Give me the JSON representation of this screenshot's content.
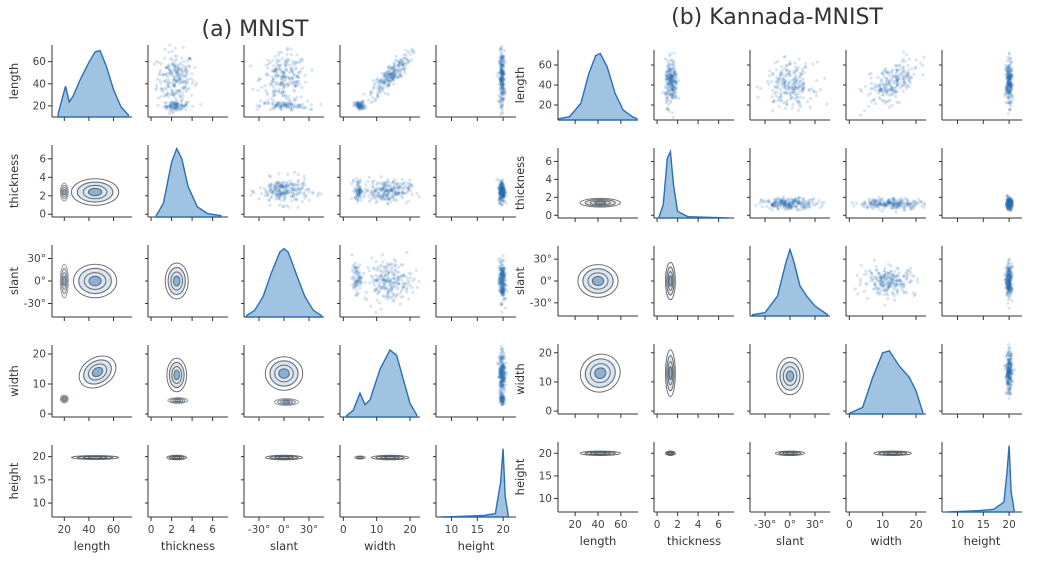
{
  "colors": {
    "accent": "#2c6fb0",
    "kde_fill": "#8fb8dc",
    "contour": "#555555",
    "axis": "#333333"
  },
  "chart_data": [
    {
      "type": "pairplot",
      "title": "(a)   MNIST",
      "variables": [
        "length",
        "thickness",
        "slant",
        "width",
        "height"
      ],
      "axes": {
        "length": {
          "range": [
            10,
            75
          ],
          "ticks": [
            20,
            40,
            60
          ],
          "tick_labels": [
            "20",
            "40",
            "60"
          ]
        },
        "thickness": {
          "range": [
            -0.3,
            7.5
          ],
          "ticks": [
            0,
            2,
            4,
            6
          ],
          "tick_labels": [
            "0",
            "2",
            "4",
            "6"
          ]
        },
        "slant": {
          "range": [
            -48,
            48
          ],
          "ticks": [
            -30,
            0,
            30
          ],
          "tick_labels": [
            "-30°",
            "0°",
            "30°"
          ]
        },
        "width": {
          "range": [
            -1,
            23
          ],
          "ticks": [
            0,
            10,
            20
          ],
          "tick_labels": [
            "0",
            "10",
            "20"
          ]
        },
        "height": {
          "range": [
            7,
            22.5
          ],
          "ticks": [
            10,
            15,
            20
          ],
          "tick_labels": [
            "10",
            "15",
            "20"
          ]
        }
      },
      "x_tick_labels_override": {
        "thickness": [
          "0",
          "2",
          "4",
          "6"
        ]
      },
      "diagonal_kde": {
        "length": [
          [
            15,
            0.05
          ],
          [
            18,
            0.25
          ],
          [
            21,
            0.45
          ],
          [
            24,
            0.22
          ],
          [
            27,
            0.3
          ],
          [
            33,
            0.55
          ],
          [
            40,
            0.8
          ],
          [
            45,
            0.95
          ],
          [
            49,
            0.97
          ],
          [
            54,
            0.75
          ],
          [
            60,
            0.4
          ],
          [
            66,
            0.15
          ],
          [
            72,
            0.03
          ]
        ],
        "thickness": [
          [
            0.5,
            0.02
          ],
          [
            1.2,
            0.2
          ],
          [
            2.0,
            0.8
          ],
          [
            2.5,
            1.0
          ],
          [
            3.0,
            0.85
          ],
          [
            3.6,
            0.45
          ],
          [
            4.5,
            0.15
          ],
          [
            5.5,
            0.05
          ],
          [
            6.8,
            0.02
          ]
        ],
        "slant": [
          [
            -45,
            0.02
          ],
          [
            -35,
            0.1
          ],
          [
            -25,
            0.3
          ],
          [
            -15,
            0.65
          ],
          [
            -5,
            0.95
          ],
          [
            0,
            1.0
          ],
          [
            5,
            0.95
          ],
          [
            15,
            0.62
          ],
          [
            25,
            0.3
          ],
          [
            35,
            0.1
          ],
          [
            45,
            0.02
          ]
        ],
        "width": [
          [
            1,
            0.02
          ],
          [
            3,
            0.1
          ],
          [
            5,
            0.35
          ],
          [
            6.5,
            0.18
          ],
          [
            8,
            0.25
          ],
          [
            11,
            0.7
          ],
          [
            14,
            0.98
          ],
          [
            16,
            0.9
          ],
          [
            18,
            0.55
          ],
          [
            20,
            0.2
          ],
          [
            22,
            0.03
          ]
        ],
        "height": [
          [
            8,
            0.0
          ],
          [
            12,
            0.01
          ],
          [
            16,
            0.02
          ],
          [
            18.5,
            0.05
          ],
          [
            19.5,
            0.5
          ],
          [
            20,
            1.0
          ],
          [
            20.4,
            0.3
          ],
          [
            21,
            0.02
          ]
        ]
      },
      "blobs": [
        {
          "x": "length",
          "y": 45,
          "yvar": "thickness",
          "yv": 2.4,
          "sx": 12,
          "sy": 0.9,
          "w": 1
        },
        {
          "x": "length",
          "xv": 20,
          "yvar": "thickness",
          "yv": 2.4,
          "sx": 2,
          "sy": 0.6,
          "w": 0.4
        },
        {
          "x": "length",
          "xv": 45,
          "yvar": "slant",
          "yv": 0,
          "sx": 11,
          "sy": 14,
          "w": 1
        },
        {
          "x": "length",
          "xv": 20,
          "yvar": "slant",
          "yv": 0,
          "sx": 2,
          "sy": 14,
          "w": 0.4
        },
        {
          "x": "length",
          "xv": 47,
          "yvar": "width",
          "yv": 14,
          "sx": 10,
          "sy": 3,
          "rho": 0.85,
          "w": 1
        },
        {
          "x": "length",
          "xv": 20,
          "yvar": "width",
          "yv": 5,
          "sx": 2,
          "sy": 0.8,
          "w": 0.35
        },
        {
          "x": "length",
          "xv": 45,
          "yvar": "height",
          "yv": 19.8,
          "sx": 12,
          "sy": 0.25,
          "w": 1
        },
        {
          "x": "thickness",
          "xv": 2.5,
          "yvar": "slant",
          "yv": 0,
          "sx": 0.7,
          "sy": 15,
          "w": 1
        },
        {
          "x": "thickness",
          "xv": 2.5,
          "yvar": "width",
          "yv": 13,
          "sx": 0.6,
          "sy": 3.5,
          "w": 1
        },
        {
          "x": "thickness",
          "xv": 2.6,
          "yvar": "width",
          "yv": 4.5,
          "sx": 0.6,
          "sy": 0.6,
          "w": 0.3
        },
        {
          "x": "thickness",
          "xv": 2.5,
          "yvar": "height",
          "yv": 19.8,
          "sx": 0.6,
          "sy": 0.3,
          "w": 1
        },
        {
          "x": "slant",
          "xv": 0,
          "yvar": "width",
          "yv": 13.5,
          "sx": 14,
          "sy": 3.5,
          "w": 1
        },
        {
          "x": "slant",
          "xv": 3,
          "yvar": "width",
          "yv": 4,
          "sx": 9,
          "sy": 0.7,
          "w": 0.3
        },
        {
          "x": "slant",
          "xv": 0,
          "yvar": "height",
          "yv": 19.8,
          "sx": 14,
          "sy": 0.3,
          "w": 1
        },
        {
          "x": "width",
          "xv": 14,
          "yvar": "height",
          "yv": 19.8,
          "sx": 3.5,
          "sy": 0.3,
          "w": 1
        },
        {
          "x": "width",
          "xv": 5,
          "yvar": "height",
          "yv": 19.8,
          "sx": 1,
          "sy": 0.2,
          "w": 0.3
        }
      ]
    },
    {
      "type": "pairplot",
      "title": "(b) Kannada-MNIST",
      "variables": [
        "length",
        "thickness",
        "slant",
        "width",
        "height"
      ],
      "axes": {
        "length": {
          "range": [
            5,
            75
          ],
          "ticks": [
            20,
            40,
            60
          ],
          "tick_labels": [
            "20",
            "40",
            "60"
          ]
        },
        "thickness": {
          "range": [
            -0.3,
            7.5
          ],
          "ticks": [
            0,
            2,
            4,
            6
          ],
          "tick_labels": [
            "0",
            "2",
            "4",
            "6"
          ]
        },
        "slant": {
          "range": [
            -48,
            48
          ],
          "ticks": [
            -30,
            0,
            30
          ],
          "tick_labels": [
            "-30°",
            "0°",
            "30°"
          ]
        },
        "width": {
          "range": [
            -1,
            23
          ],
          "ticks": [
            0,
            10,
            20
          ],
          "tick_labels": [
            "0",
            "10",
            "20"
          ]
        },
        "height": {
          "range": [
            7,
            22.5
          ],
          "ticks": [
            10,
            15,
            20
          ],
          "tick_labels": [
            "10",
            "15",
            "20"
          ]
        }
      },
      "diagonal_kde": {
        "length": [
          [
            6,
            0.02
          ],
          [
            15,
            0.05
          ],
          [
            25,
            0.25
          ],
          [
            32,
            0.7
          ],
          [
            38,
            0.97
          ],
          [
            42,
            1.0
          ],
          [
            48,
            0.8
          ],
          [
            55,
            0.4
          ],
          [
            62,
            0.15
          ],
          [
            70,
            0.05
          ],
          [
            74,
            0.02
          ]
        ],
        "thickness": [
          [
            0.2,
            0.02
          ],
          [
            0.6,
            0.2
          ],
          [
            1.0,
            0.9
          ],
          [
            1.3,
            1.0
          ],
          [
            1.6,
            0.5
          ],
          [
            2.0,
            0.1
          ],
          [
            3.0,
            0.02
          ],
          [
            7.0,
            0.0
          ]
        ],
        "slant": [
          [
            -45,
            0.02
          ],
          [
            -30,
            0.05
          ],
          [
            -15,
            0.3
          ],
          [
            -5,
            0.8
          ],
          [
            0,
            1.0
          ],
          [
            5,
            0.8
          ],
          [
            12,
            0.45
          ],
          [
            20,
            0.3
          ],
          [
            30,
            0.15
          ],
          [
            45,
            0.02
          ]
        ],
        "width": [
          [
            0,
            0.01
          ],
          [
            4,
            0.1
          ],
          [
            7,
            0.55
          ],
          [
            10,
            0.92
          ],
          [
            12,
            0.95
          ],
          [
            15,
            0.72
          ],
          [
            18,
            0.55
          ],
          [
            20,
            0.35
          ],
          [
            22,
            0.03
          ]
        ],
        "height": [
          [
            8,
            0.0
          ],
          [
            14,
            0.02
          ],
          [
            17,
            0.04
          ],
          [
            19,
            0.15
          ],
          [
            19.6,
            0.6
          ],
          [
            20,
            1.0
          ],
          [
            20.4,
            0.3
          ],
          [
            21,
            0.02
          ]
        ]
      },
      "blobs": [
        {
          "x": "length",
          "xv": 42,
          "yvar": "thickness",
          "yv": 1.4,
          "sx": 11,
          "sy": 0.3,
          "w": 1
        },
        {
          "x": "length",
          "xv": 40,
          "yvar": "slant",
          "yv": 0,
          "sx": 11,
          "sy": 14,
          "w": 1
        },
        {
          "x": "length",
          "xv": 42,
          "yvar": "width",
          "yv": 13,
          "sx": 11,
          "sy": 4,
          "rho": 0.5,
          "w": 1
        },
        {
          "x": "length",
          "xv": 42,
          "yvar": "height",
          "yv": 20,
          "sx": 11,
          "sy": 0.3,
          "w": 1
        },
        {
          "x": "thickness",
          "xv": 1.3,
          "yvar": "slant",
          "yv": 0,
          "sx": 0.3,
          "sy": 16,
          "w": 1
        },
        {
          "x": "thickness",
          "xv": 1.3,
          "yvar": "width",
          "yv": 13,
          "sx": 0.3,
          "sy": 5,
          "w": 1
        },
        {
          "x": "thickness",
          "xv": 1.3,
          "yvar": "height",
          "yv": 20,
          "sx": 0.3,
          "sy": 0.3,
          "w": 1
        },
        {
          "x": "slant",
          "xv": 0,
          "yvar": "width",
          "yv": 12,
          "sx": 10,
          "sy": 4,
          "w": 1
        },
        {
          "x": "slant",
          "xv": 0,
          "yvar": "height",
          "yv": 20,
          "sx": 11,
          "sy": 0.3,
          "w": 1
        },
        {
          "x": "width",
          "xv": 13,
          "yvar": "height",
          "yv": 20,
          "sx": 3.5,
          "sy": 0.3,
          "w": 1
        }
      ]
    }
  ]
}
